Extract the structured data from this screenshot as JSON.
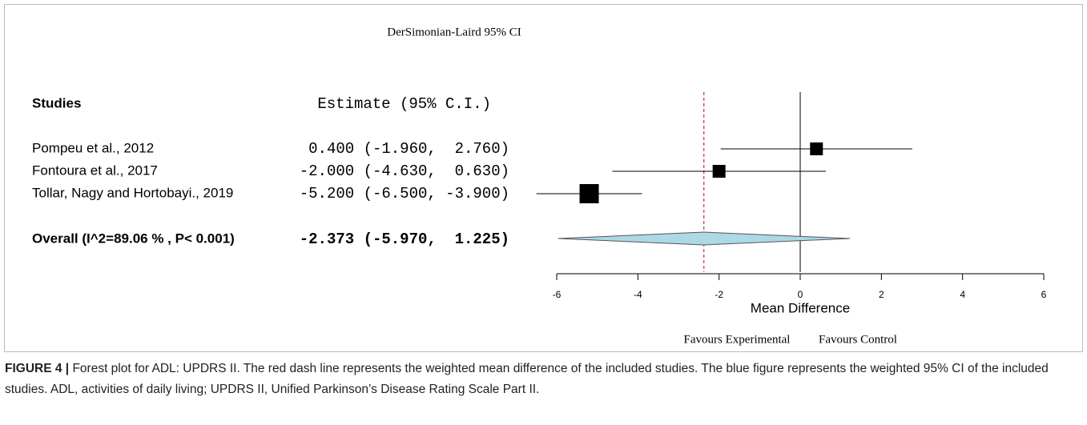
{
  "chart_data": {
    "type": "forest",
    "title": "DerSimonian-Laird 95% CI",
    "column_headers": [
      "Studies",
      "Estimate (95% C.I.)"
    ],
    "categories": [
      "Pompeu et al.,  2012",
      "Fontoura et al.,  2017",
      "Tollar, Nagy and Hortobayi., 2019"
    ],
    "estimate_labels": [
      "0.400 (-1.960,  2.760)",
      "-2.000 (-4.630,  0.630)",
      "-5.200 (-6.500, -3.900)"
    ],
    "values": [
      0.4,
      -2.0,
      -5.2
    ],
    "lower": [
      -1.96,
      -4.63,
      -6.5
    ],
    "upper": [
      2.76,
      0.63,
      -3.9
    ],
    "overall": {
      "label": "Overall (I^2=89.06 % , P< 0.001)",
      "estimate_label": "-2.373 (-5.970,  1.225)",
      "value": -2.373,
      "lower": -5.97,
      "upper": 1.225,
      "color": "#add8e6",
      "line_color": "#cc0000"
    },
    "marker_color": "#000000",
    "xlim": [
      -6,
      6
    ],
    "xticks": [
      -6,
      -4,
      -2,
      0,
      2,
      4,
      6
    ],
    "xlabel": "Mean Difference",
    "annotations": [
      "Favours Experimental",
      "Favours Control"
    ]
  },
  "caption": {
    "label": "FIGURE 4 |",
    "text": " Forest plot for ADL: UPDRS II. The red dash line represents the weighted mean difference of the included studies. The blue figure represents the weighted 95% CI of the included studies. ADL, activities of daily living; UPDRS II, Unified Parkinson’s Disease Rating Scale Part II."
  }
}
